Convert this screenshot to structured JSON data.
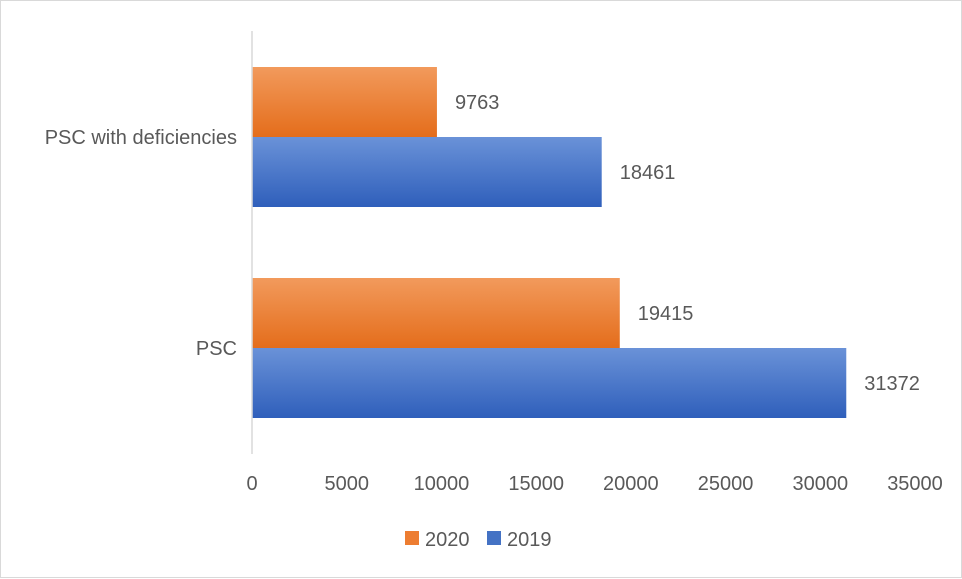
{
  "chart_data": {
    "type": "bar",
    "orientation": "horizontal",
    "categories": [
      "PSC",
      "PSC with deficiencies"
    ],
    "series": [
      {
        "name": "2019",
        "values": [
          31372,
          18461
        ],
        "color": "#4472C4"
      },
      {
        "name": "2020",
        "values": [
          19415,
          9763
        ],
        "color": "#ED7D31"
      }
    ],
    "xlim": [
      0,
      35000
    ],
    "xticks": [
      "0",
      "5000",
      "10000",
      "15000",
      "20000",
      "25000",
      "30000",
      "35000"
    ],
    "grid": false,
    "legend_position": "bottom",
    "data_labels": true,
    "title": "",
    "xlabel": "",
    "ylabel": ""
  }
}
